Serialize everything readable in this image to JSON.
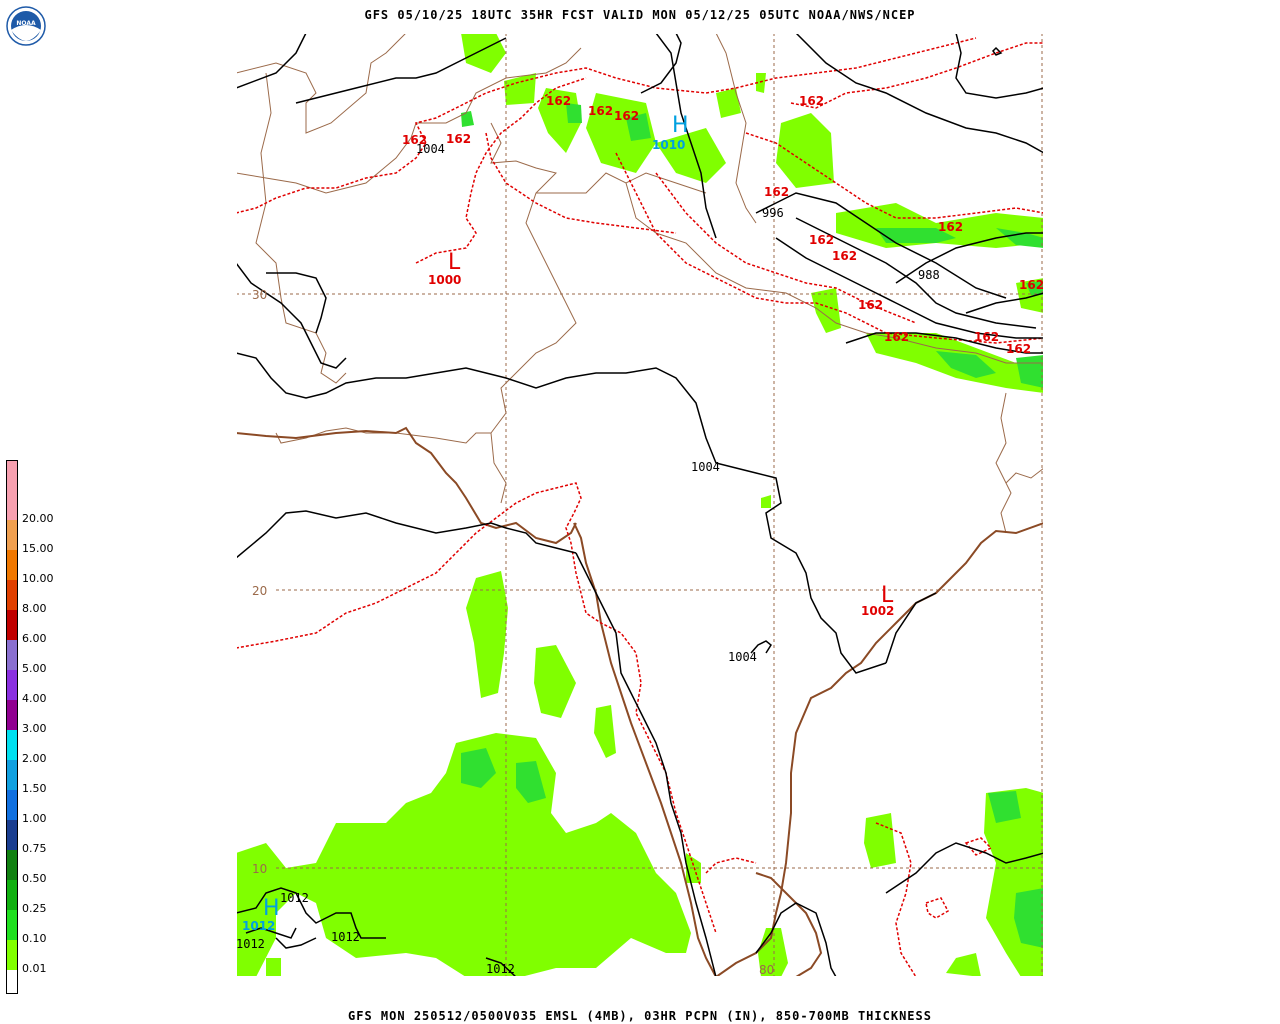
{
  "header": {
    "title": "GFS 05/10/25 18UTC 35HR FCST VALID MON 05/12/25 05UTC NOAA/NWS/NCEP",
    "footer": "GFS MON 250512/0500V035 EMSL (4MB), 03HR PCPN (IN), 850-700MB THICKNESS"
  },
  "logo": {
    "text": "NOAA",
    "icon": "noaa-logo-icon",
    "color": "#1e5aa8"
  },
  "legend": {
    "items": [
      {
        "label": "",
        "color": "#f7a0b0"
      },
      {
        "label": "20.00",
        "color": "#f7a0b0"
      },
      {
        "label": "15.00",
        "color": "#f0a050"
      },
      {
        "label": "10.00",
        "color": "#f07800"
      },
      {
        "label": "8.00",
        "color": "#e04000"
      },
      {
        "label": "6.00",
        "color": "#c00000"
      },
      {
        "label": "5.00",
        "color": "#8a70d0"
      },
      {
        "label": "4.00",
        "color": "#8a30e0"
      },
      {
        "label": "3.00",
        "color": "#900090"
      },
      {
        "label": "2.00",
        "color": "#00e0f0"
      },
      {
        "label": "1.50",
        "color": "#10a0e0"
      },
      {
        "label": "1.00",
        "color": "#1070e0"
      },
      {
        "label": "0.75",
        "color": "#1a3e90"
      },
      {
        "label": "0.50",
        "color": "#108010"
      },
      {
        "label": "0.25",
        "color": "#10b010"
      },
      {
        "label": "0.10",
        "color": "#20e020"
      },
      {
        "label": "0.01",
        "color": "#80ff00"
      },
      {
        "label": "",
        "color": "#ffffff"
      }
    ]
  },
  "map": {
    "colors": {
      "precip": "#80ff00",
      "precip_heavy": "#30e030",
      "isobar": "#000000",
      "thickness": "#e00000",
      "border": "#9b6a4a",
      "coast": "#8b4a25",
      "grid": "#9b6a4a",
      "high_low_label": "#e00000",
      "high_label": "#00a0e0"
    },
    "grid_labels": [
      "30",
      "20",
      "10",
      "80"
    ],
    "isobar_labels": [
      "1004",
      "996",
      "988",
      "1004",
      "1004",
      "1012",
      "1012",
      "1012",
      "1012"
    ],
    "thickness_labels": [
      "162",
      "162",
      "162",
      "162",
      "162",
      "162",
      "162",
      "162",
      "162",
      "162",
      "162",
      "162",
      "162",
      "162",
      "162"
    ],
    "pressure_centers": [
      {
        "letter": "H",
        "value": "1010"
      },
      {
        "letter": "L",
        "value": "1000"
      },
      {
        "letter": "L",
        "value": "1002"
      },
      {
        "letter": "H",
        "value": "1012"
      }
    ]
  }
}
